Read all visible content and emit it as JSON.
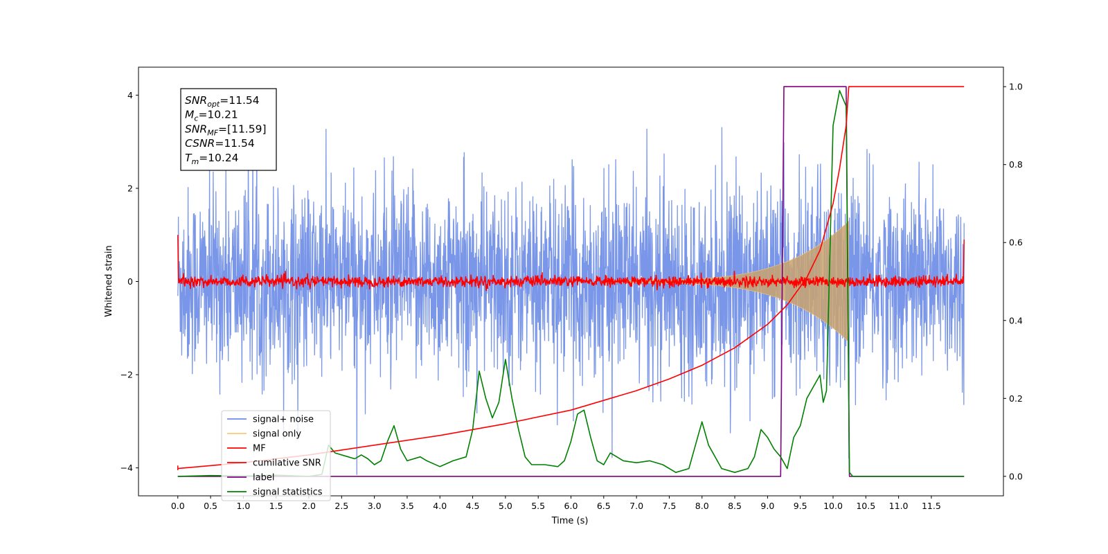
{
  "chart_data": {
    "type": "line",
    "xlabel": "Time (s)",
    "ylabel": "Whitened strain",
    "xlim": [
      -0.6,
      12.6
    ],
    "ylim": [
      -4.6,
      4.6
    ],
    "y2lim": [
      -0.05,
      1.05
    ],
    "x_ticks": [
      "0.0",
      "0.5",
      "1.0",
      "1.5",
      "2.0",
      "2.5",
      "3.0",
      "3.5",
      "4.0",
      "4.5",
      "5.0",
      "5.5",
      "6.0",
      "6.5",
      "7.0",
      "7.5",
      "8.0",
      "8.5",
      "9.0",
      "9.5",
      "10.0",
      "10.5",
      "11.0",
      "11.5"
    ],
    "y_ticks": [
      "−4",
      "−2",
      "0",
      "2",
      "4"
    ],
    "y2_ticks": [
      "0.0",
      "0.2",
      "0.4",
      "0.6",
      "0.8",
      "1.0"
    ],
    "grid": false,
    "legend_placement": "lower-left",
    "info_box": {
      "placement": "top-left",
      "lines": [
        {
          "sym": "SNR",
          "sub": "opt",
          "val": "=11.54"
        },
        {
          "sym": "M",
          "sub": "c",
          "val": "=10.21"
        },
        {
          "sym": "SNR",
          "sub": "MF",
          "val": "=[11.59]"
        },
        {
          "sym": "CSNR",
          "sub": "",
          "val": "=11.54"
        },
        {
          "sym": "T",
          "sub": "m",
          "val": "=10.24"
        }
      ]
    },
    "series": [
      {
        "name": "signal+ noise",
        "color": "#6a8be6",
        "axis": "left",
        "description_values": {
          "x_range": [
            0.0,
            12.0
          ],
          "envelope_std": 1.0,
          "peak": 4.17
        }
      },
      {
        "name": "signal only",
        "color": "#f7c974",
        "axis": "left",
        "chirp": {
          "start_x": 6.5,
          "merge_x": 10.24,
          "start_amp": 0.03,
          "peak_amp": 1.3
        }
      },
      {
        "name": "MF",
        "color": "#ff0000",
        "axis": "left",
        "description_values": {
          "start": 1.0,
          "end": 0.9,
          "noise_amp": 0.1
        }
      },
      {
        "name": "cumilative SNR",
        "color": "#ff0000",
        "axis": "right",
        "points": [
          [
            0.0,
            0.02
          ],
          [
            1.0,
            0.035
          ],
          [
            2.0,
            0.055
          ],
          [
            3.0,
            0.08
          ],
          [
            4.0,
            0.105
          ],
          [
            5.0,
            0.135
          ],
          [
            6.0,
            0.17
          ],
          [
            7.0,
            0.22
          ],
          [
            7.5,
            0.25
          ],
          [
            8.0,
            0.285
          ],
          [
            8.5,
            0.33
          ],
          [
            9.0,
            0.39
          ],
          [
            9.3,
            0.44
          ],
          [
            9.6,
            0.51
          ],
          [
            9.8,
            0.58
          ],
          [
            10.0,
            0.7
          ],
          [
            10.1,
            0.79
          ],
          [
            10.2,
            0.9
          ],
          [
            10.24,
            1.0
          ],
          [
            12.0,
            1.0
          ]
        ]
      },
      {
        "name": "label",
        "color": "#800080",
        "axis": "right",
        "points": [
          [
            0.0,
            0.0
          ],
          [
            9.2,
            0.0
          ],
          [
            9.25,
            1.0
          ],
          [
            10.2,
            1.0
          ],
          [
            10.25,
            0.0
          ],
          [
            12.0,
            0.0
          ]
        ]
      },
      {
        "name": "signal statistics",
        "color": "#008000",
        "axis": "right",
        "points": [
          [
            0.0,
            0.0
          ],
          [
            0.5,
            0.002
          ],
          [
            1.0,
            0.001
          ],
          [
            1.5,
            0.003
          ],
          [
            2.0,
            0.0
          ],
          [
            2.2,
            0.005
          ],
          [
            2.3,
            0.08
          ],
          [
            2.4,
            0.06
          ],
          [
            2.6,
            0.05
          ],
          [
            2.7,
            0.045
          ],
          [
            2.8,
            0.055
          ],
          [
            2.9,
            0.045
          ],
          [
            3.0,
            0.03
          ],
          [
            3.1,
            0.04
          ],
          [
            3.2,
            0.09
          ],
          [
            3.3,
            0.13
          ],
          [
            3.4,
            0.07
          ],
          [
            3.5,
            0.04
          ],
          [
            3.7,
            0.05
          ],
          [
            3.8,
            0.04
          ],
          [
            4.0,
            0.025
          ],
          [
            4.2,
            0.04
          ],
          [
            4.4,
            0.05
          ],
          [
            4.5,
            0.12
          ],
          [
            4.6,
            0.27
          ],
          [
            4.7,
            0.2
          ],
          [
            4.8,
            0.15
          ],
          [
            4.9,
            0.19
          ],
          [
            5.0,
            0.3
          ],
          [
            5.1,
            0.2
          ],
          [
            5.2,
            0.12
          ],
          [
            5.3,
            0.05
          ],
          [
            5.4,
            0.03
          ],
          [
            5.6,
            0.03
          ],
          [
            5.8,
            0.025
          ],
          [
            5.9,
            0.04
          ],
          [
            6.0,
            0.09
          ],
          [
            6.1,
            0.16
          ],
          [
            6.2,
            0.17
          ],
          [
            6.3,
            0.1
          ],
          [
            6.4,
            0.04
          ],
          [
            6.5,
            0.03
          ],
          [
            6.6,
            0.06
          ],
          [
            6.7,
            0.05
          ],
          [
            6.8,
            0.04
          ],
          [
            7.0,
            0.035
          ],
          [
            7.2,
            0.04
          ],
          [
            7.4,
            0.03
          ],
          [
            7.6,
            0.01
          ],
          [
            7.8,
            0.02
          ],
          [
            8.0,
            0.14
          ],
          [
            8.1,
            0.08
          ],
          [
            8.3,
            0.02
          ],
          [
            8.5,
            0.01
          ],
          [
            8.7,
            0.02
          ],
          [
            8.8,
            0.05
          ],
          [
            8.9,
            0.12
          ],
          [
            9.0,
            0.1
          ],
          [
            9.1,
            0.07
          ],
          [
            9.2,
            0.05
          ],
          [
            9.3,
            0.02
          ],
          [
            9.4,
            0.1
          ],
          [
            9.5,
            0.13
          ],
          [
            9.6,
            0.2
          ],
          [
            9.7,
            0.23
          ],
          [
            9.8,
            0.26
          ],
          [
            9.85,
            0.19
          ],
          [
            9.9,
            0.22
          ],
          [
            10.0,
            0.9
          ],
          [
            10.1,
            0.99
          ],
          [
            10.2,
            0.95
          ],
          [
            10.25,
            0.01
          ],
          [
            10.3,
            0.0
          ],
          [
            12.0,
            0.0
          ]
        ]
      }
    ]
  }
}
